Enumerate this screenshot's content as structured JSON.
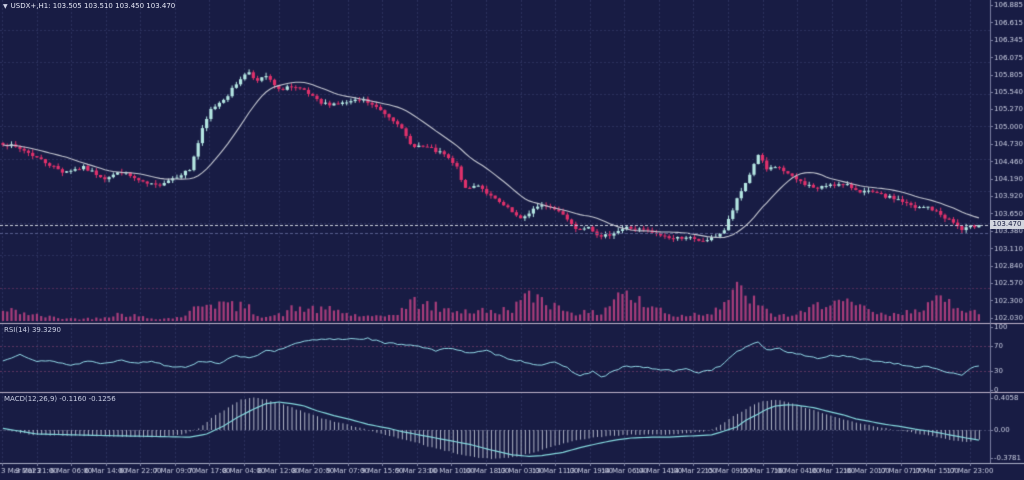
{
  "header": {
    "dropdown_icon": "▼",
    "symbol_info": "USDX+,H1: 103.505 103.510 103.450 103.470"
  },
  "price_axis": {
    "tick_labels": [
      "106.885",
      "106.615",
      "106.345",
      "106.075",
      "105.805",
      "105.540",
      "105.270",
      "105.000",
      "104.730",
      "104.460",
      "104.190",
      "103.920",
      "103.650",
      "103.380",
      "103.110",
      "102.840",
      "102.570",
      "102.300",
      "102.030"
    ],
    "current_price": "103.470"
  },
  "time_axis": {
    "tick_labels": [
      "3 Mar 2023",
      "3 Mar 21:00",
      "6 Mar 06:00",
      "6 Mar 14:00",
      "6 Mar 22:00",
      "7 Mar 09:00",
      "7 Mar 17:00",
      "8 Mar 04:00",
      "8 Mar 12:00",
      "8 Mar 20:00",
      "9 Mar 07:00",
      "9 Mar 15:00",
      "9 Mar 23:00",
      "10 Mar 10:00",
      "10 Mar 18:00",
      "13 Mar 03:00",
      "13 Mar 11:00",
      "13 Mar 19:00",
      "14 Mar 06:00",
      "14 Mar 14:00",
      "14 Mar 22:00",
      "15 Mar 09:00",
      "15 Mar 17:00",
      "16 Mar 04:00",
      "16 Mar 12:00",
      "16 Mar 20:00",
      "17 Mar 07:00",
      "17 Mar 15:00",
      "17 Mar 23:00"
    ]
  },
  "indicators": {
    "rsi": {
      "label": "RSI(14) 39.3290",
      "scale_labels": [
        "100",
        "70",
        "30",
        "0"
      ],
      "scale_values": [
        100,
        70,
        30,
        0
      ]
    },
    "macd": {
      "label": "MACD(12,26,9) -0.1160 -0.1256",
      "scale_labels": [
        "0.4058",
        "0.00",
        "-0.3781"
      ],
      "scale_values": [
        0.4058,
        0,
        -0.3781
      ]
    }
  },
  "colors": {
    "background": "#181c44",
    "grid": "#3f4476",
    "grid_pink": "#8a3e6e",
    "candle_up": "#b4e6e2",
    "candle_down": "#e0316b",
    "ma_line": "#c2c5cf",
    "volume": "#a83d7b",
    "rsi_line": "#92d9e8",
    "rsi_level": "#a34f7e",
    "macd_line": "#83d6dc",
    "macd_hist": "#c5c9d8",
    "separator": "#bcb2c8",
    "axis_line": "#7a7ea0",
    "axis_text": "#cdd1e4",
    "current_line": "#c9ccd8",
    "price_tag_bg": "#d3d6df",
    "price_tag_text": "#15193e"
  },
  "chart_data": [
    {
      "type": "candlestick",
      "symbol": "USDX+",
      "timeframe": "H1",
      "bars": 231,
      "current_ohlc": {
        "open": 103.505,
        "high": 103.51,
        "low": 103.45,
        "close": 103.47
      },
      "ylim": [
        102.03,
        106.96
      ],
      "ma_period": 16,
      "price_anchors": [
        [
          0,
          104.74
        ],
        [
          5,
          104.63
        ],
        [
          9,
          104.48
        ],
        [
          14,
          104.3
        ],
        [
          19,
          104.36
        ],
        [
          24,
          104.2
        ],
        [
          28,
          104.3
        ],
        [
          33,
          104.12
        ],
        [
          36,
          104.08
        ],
        [
          40,
          104.2
        ],
        [
          44,
          104.33
        ],
        [
          47,
          104.95
        ],
        [
          49,
          105.26
        ],
        [
          53,
          105.49
        ],
        [
          56,
          105.75
        ],
        [
          58,
          105.85
        ],
        [
          60,
          105.7
        ],
        [
          62,
          105.78
        ],
        [
          65,
          105.56
        ],
        [
          67,
          105.62
        ],
        [
          71,
          105.55
        ],
        [
          75,
          105.35
        ],
        [
          80,
          105.36
        ],
        [
          85,
          105.41
        ],
        [
          89,
          105.25
        ],
        [
          93,
          105.06
        ],
        [
          96,
          104.72
        ],
        [
          100,
          104.67
        ],
        [
          104,
          104.56
        ],
        [
          107,
          104.36
        ],
        [
          109,
          104.02
        ],
        [
          112,
          104.1
        ],
        [
          115,
          103.91
        ],
        [
          119,
          103.72
        ],
        [
          122,
          103.55
        ],
        [
          125,
          103.72
        ],
        [
          128,
          103.78
        ],
        [
          132,
          103.65
        ],
        [
          135,
          103.41
        ],
        [
          138,
          103.46
        ],
        [
          141,
          103.27
        ],
        [
          144,
          103.36
        ],
        [
          147,
          103.43
        ],
        [
          151,
          103.39
        ],
        [
          154,
          103.33
        ],
        [
          158,
          103.26
        ],
        [
          161,
          103.29
        ],
        [
          164,
          103.21
        ],
        [
          167,
          103.26
        ],
        [
          170,
          103.39
        ],
        [
          173,
          103.86
        ],
        [
          176,
          104.26
        ],
        [
          178,
          104.57
        ],
        [
          180,
          104.33
        ],
        [
          183,
          104.36
        ],
        [
          186,
          104.21
        ],
        [
          189,
          104.11
        ],
        [
          192,
          104.03
        ],
        [
          195,
          104.11
        ],
        [
          199,
          104.08
        ],
        [
          202,
          104.0
        ],
        [
          205,
          103.97
        ],
        [
          208,
          103.91
        ],
        [
          211,
          103.87
        ],
        [
          215,
          103.73
        ],
        [
          218,
          103.75
        ],
        [
          221,
          103.63
        ],
        [
          224,
          103.51
        ],
        [
          226,
          103.39
        ],
        [
          228,
          103.44
        ],
        [
          230,
          103.47
        ]
      ]
    },
    {
      "type": "bar",
      "name": "tick-volume",
      "rel_anchors": [
        [
          0,
          0.35
        ],
        [
          7,
          0.2
        ],
        [
          14,
          0.25
        ],
        [
          21,
          0.15
        ],
        [
          28,
          0.2
        ],
        [
          35,
          0.15
        ],
        [
          41,
          0.3
        ],
        [
          47,
          0.8
        ],
        [
          51,
          0.5
        ],
        [
          54,
          0.45
        ],
        [
          58,
          0.6
        ],
        [
          61,
          0.4
        ],
        [
          65,
          0.5
        ],
        [
          68,
          0.75
        ],
        [
          72,
          0.45
        ],
        [
          75,
          0.3
        ],
        [
          79,
          0.35
        ],
        [
          82,
          0.3
        ],
        [
          86,
          0.4
        ],
        [
          89,
          0.35
        ],
        [
          93,
          0.5
        ],
        [
          96,
          0.65
        ],
        [
          100,
          0.45
        ],
        [
          104,
          0.4
        ],
        [
          107,
          0.6
        ],
        [
          111,
          0.9
        ],
        [
          113,
          0.85
        ],
        [
          116,
          0.55
        ],
        [
          120,
          0.5
        ],
        [
          124,
          0.65
        ],
        [
          127,
          0.8
        ],
        [
          131,
          0.75
        ],
        [
          134,
          0.9
        ],
        [
          138,
          0.6
        ],
        [
          141,
          0.5
        ],
        [
          145,
          1.0
        ],
        [
          148,
          0.65
        ],
        [
          152,
          0.5
        ],
        [
          155,
          0.7
        ],
        [
          159,
          0.45
        ],
        [
          162,
          0.55
        ],
        [
          166,
          0.4
        ],
        [
          169,
          0.5
        ],
        [
          173,
          0.85
        ],
        [
          176,
          0.9
        ],
        [
          180,
          0.6
        ],
        [
          184,
          0.5
        ],
        [
          187,
          0.45
        ],
        [
          191,
          0.55
        ],
        [
          194,
          0.65
        ],
        [
          198,
          0.5
        ],
        [
          201,
          0.6
        ],
        [
          205,
          0.75
        ],
        [
          208,
          0.5
        ],
        [
          212,
          0.45
        ],
        [
          215,
          0.55
        ],
        [
          219,
          0.5
        ],
        [
          222,
          0.6
        ],
        [
          226,
          0.7
        ],
        [
          229,
          0.85
        ],
        [
          230,
          0.6
        ]
      ]
    },
    {
      "type": "line",
      "name": "RSI(14)",
      "value": 39.329,
      "ylim": [
        0,
        100
      ],
      "levels": [
        70,
        30
      ],
      "anchors": [
        [
          0,
          46
        ],
        [
          4,
          58
        ],
        [
          8,
          45
        ],
        [
          12,
          46
        ],
        [
          16,
          39
        ],
        [
          20,
          46
        ],
        [
          24,
          42
        ],
        [
          28,
          49
        ],
        [
          31,
          42
        ],
        [
          35,
          46
        ],
        [
          39,
          38
        ],
        [
          43,
          37
        ],
        [
          47,
          46
        ],
        [
          51,
          43
        ],
        [
          55,
          54
        ],
        [
          59,
          52
        ],
        [
          62,
          64
        ],
        [
          64,
          60
        ],
        [
          67,
          69
        ],
        [
          71,
          77
        ],
        [
          75,
          80
        ],
        [
          80,
          81
        ],
        [
          86,
          82
        ],
        [
          90,
          74
        ],
        [
          94,
          73
        ],
        [
          98,
          70
        ],
        [
          102,
          62
        ],
        [
          106,
          67
        ],
        [
          110,
          58
        ],
        [
          114,
          62
        ],
        [
          118,
          52
        ],
        [
          122,
          46
        ],
        [
          126,
          40
        ],
        [
          130,
          43
        ],
        [
          133,
          35
        ],
        [
          136,
          22
        ],
        [
          139,
          30
        ],
        [
          141,
          20
        ],
        [
          144,
          30
        ],
        [
          147,
          38
        ],
        [
          151,
          36
        ],
        [
          154,
          33
        ],
        [
          158,
          30
        ],
        [
          161,
          33
        ],
        [
          164,
          28
        ],
        [
          167,
          32
        ],
        [
          170,
          42
        ],
        [
          173,
          62
        ],
        [
          176,
          70
        ],
        [
          178,
          76
        ],
        [
          180,
          64
        ],
        [
          183,
          66
        ],
        [
          186,
          58
        ],
        [
          189,
          55
        ],
        [
          192,
          50
        ],
        [
          195,
          55
        ],
        [
          199,
          53
        ],
        [
          202,
          49
        ],
        [
          205,
          47
        ],
        [
          208,
          44
        ],
        [
          211,
          42
        ],
        [
          215,
          36
        ],
        [
          218,
          38
        ],
        [
          221,
          32
        ],
        [
          224,
          26
        ],
        [
          226,
          22
        ],
        [
          228,
          33
        ],
        [
          230,
          39.3
        ]
      ]
    },
    {
      "type": "macd",
      "name": "MACD(12,26,9)",
      "macd": -0.116,
      "signal": -0.1256,
      "ylim": [
        -0.3781,
        0.4058
      ],
      "line_anchors": [
        [
          0,
          0.02
        ],
        [
          8,
          -0.05
        ],
        [
          24,
          -0.07
        ],
        [
          35,
          -0.08
        ],
        [
          44,
          -0.09
        ],
        [
          48,
          -0.05
        ],
        [
          52,
          0.05
        ],
        [
          55,
          0.15
        ],
        [
          59,
          0.26
        ],
        [
          62,
          0.33
        ],
        [
          65,
          0.35
        ],
        [
          68,
          0.33
        ],
        [
          71,
          0.3
        ],
        [
          74,
          0.24
        ],
        [
          78,
          0.18
        ],
        [
          82,
          0.13
        ],
        [
          86,
          0.07
        ],
        [
          91,
          0.02
        ],
        [
          94,
          -0.02
        ],
        [
          99,
          -0.07
        ],
        [
          102,
          -0.1
        ],
        [
          107,
          -0.15
        ],
        [
          110,
          -0.18
        ],
        [
          115,
          -0.25
        ],
        [
          120,
          -0.31
        ],
        [
          124,
          -0.33
        ],
        [
          127,
          -0.32
        ],
        [
          132,
          -0.28
        ],
        [
          136,
          -0.22
        ],
        [
          141,
          -0.16
        ],
        [
          145,
          -0.12
        ],
        [
          148,
          -0.1
        ],
        [
          153,
          -0.09
        ],
        [
          157,
          -0.09
        ],
        [
          160,
          -0.08
        ],
        [
          164,
          -0.07
        ],
        [
          167,
          -0.06
        ],
        [
          169,
          -0.03
        ],
        [
          173,
          0.04
        ],
        [
          175,
          0.12
        ],
        [
          178,
          0.2
        ],
        [
          180,
          0.26
        ],
        [
          182,
          0.3
        ],
        [
          185,
          0.315
        ],
        [
          187,
          0.31
        ],
        [
          191,
          0.28
        ],
        [
          194,
          0.24
        ],
        [
          198,
          0.19
        ],
        [
          201,
          0.14
        ],
        [
          205,
          0.1
        ],
        [
          208,
          0.07
        ],
        [
          212,
          0.04
        ],
        [
          215,
          0.01
        ],
        [
          219,
          -0.02
        ],
        [
          222,
          -0.05
        ],
        [
          225,
          -0.08
        ],
        [
          227,
          -0.1
        ],
        [
          230,
          -0.1256
        ]
      ],
      "hist_anchors": [
        [
          0,
          0.0
        ],
        [
          7,
          -0.06
        ],
        [
          24,
          -0.08
        ],
        [
          35,
          -0.09
        ],
        [
          42,
          -0.06
        ],
        [
          46,
          0.02
        ],
        [
          49,
          0.15
        ],
        [
          53,
          0.28
        ],
        [
          56,
          0.38
        ],
        [
          59,
          0.405
        ],
        [
          62,
          0.38
        ],
        [
          66,
          0.32
        ],
        [
          69,
          0.26
        ],
        [
          73,
          0.19
        ],
        [
          76,
          0.13
        ],
        [
          80,
          0.08
        ],
        [
          84,
          0.03
        ],
        [
          87,
          -0.02
        ],
        [
          91,
          -0.07
        ],
        [
          94,
          -0.12
        ],
        [
          98,
          -0.17
        ],
        [
          101,
          -0.22
        ],
        [
          105,
          -0.27
        ],
        [
          108,
          -0.31
        ],
        [
          112,
          -0.345
        ],
        [
          115,
          -0.36
        ],
        [
          119,
          -0.35
        ],
        [
          122,
          -0.32
        ],
        [
          126,
          -0.27
        ],
        [
          129,
          -0.21
        ],
        [
          133,
          -0.16
        ],
        [
          136,
          -0.12
        ],
        [
          140,
          -0.09
        ],
        [
          144,
          -0.07
        ],
        [
          147,
          -0.06
        ],
        [
          151,
          -0.06
        ],
        [
          154,
          -0.06
        ],
        [
          158,
          -0.05
        ],
        [
          161,
          -0.04
        ],
        [
          165,
          -0.02
        ],
        [
          168,
          0.03
        ],
        [
          170,
          0.1
        ],
        [
          172,
          0.18
        ],
        [
          175,
          0.26
        ],
        [
          177,
          0.32
        ],
        [
          179,
          0.36
        ],
        [
          182,
          0.375
        ],
        [
          184,
          0.36
        ],
        [
          186,
          0.33
        ],
        [
          189,
          0.28
        ],
        [
          192,
          0.23
        ],
        [
          195,
          0.18
        ],
        [
          198,
          0.13
        ],
        [
          201,
          0.09
        ],
        [
          205,
          0.05
        ],
        [
          208,
          0.02
        ],
        [
          211,
          -0.01
        ],
        [
          215,
          -0.04
        ],
        [
          218,
          -0.07
        ],
        [
          221,
          -0.1
        ],
        [
          224,
          -0.13
        ],
        [
          227,
          -0.15
        ],
        [
          230,
          -0.116
        ]
      ]
    }
  ]
}
